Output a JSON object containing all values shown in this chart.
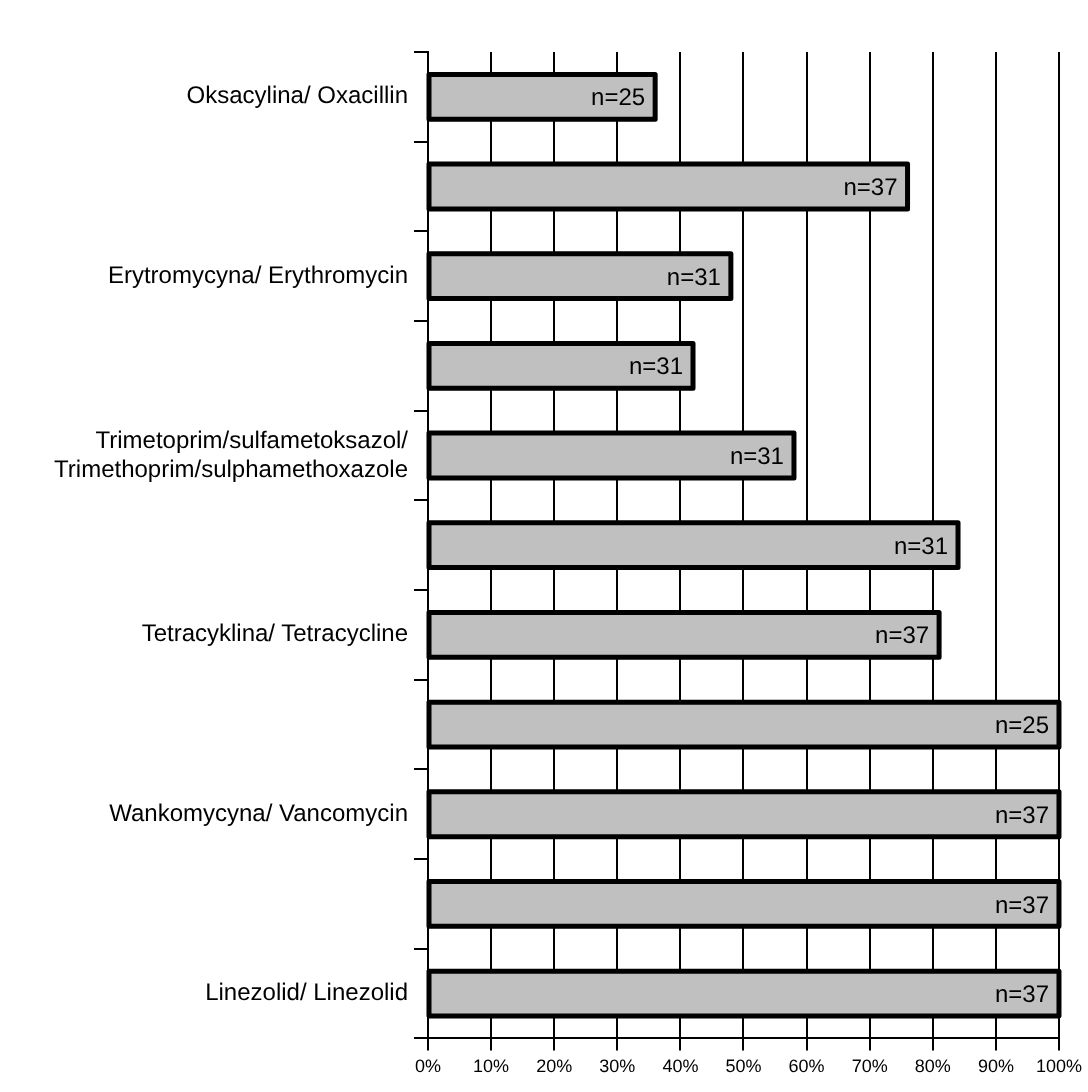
{
  "chart_data": {
    "type": "bar",
    "orientation": "horizontal",
    "categories": [
      "Oksacylina/ Oxacillin",
      null,
      "Erytromycyna/ Erythromycin",
      null,
      "Trimetoprim/sulfametoksazol/ Trimethoprim/sulphamethoxazole",
      null,
      "Tetracyklina/ Tetracycline",
      null,
      "Wankomycyna/ Vancomycin",
      null,
      "Linezolid/ Linezolid"
    ],
    "values": [
      36,
      76,
      48,
      42,
      58,
      84,
      81,
      100,
      100,
      100,
      100
    ],
    "color": "#c0c0c0",
    "xlim": [
      0,
      100
    ],
    "xticks": [
      {
        "value": 0,
        "label": "0%"
      },
      {
        "value": 10,
        "label": "10%"
      },
      {
        "value": 20,
        "label": "20%"
      },
      {
        "value": 30,
        "label": "30%"
      },
      {
        "value": 40,
        "label": "40%"
      },
      {
        "value": 50,
        "label": "50%"
      },
      {
        "value": 60,
        "label": "60%"
      },
      {
        "value": 70,
        "label": "70%"
      },
      {
        "value": 80,
        "label": "80%"
      },
      {
        "value": 90,
        "label": "90%"
      },
      {
        "value": 100,
        "label": "100%"
      }
    ],
    "annotations": [
      "n=25",
      "n=37",
      "n=31",
      "n=31",
      "n=31",
      "n=31",
      "n=37",
      "n=25",
      "n=37",
      "n=37",
      "n=37"
    ],
    "grid": "x"
  }
}
